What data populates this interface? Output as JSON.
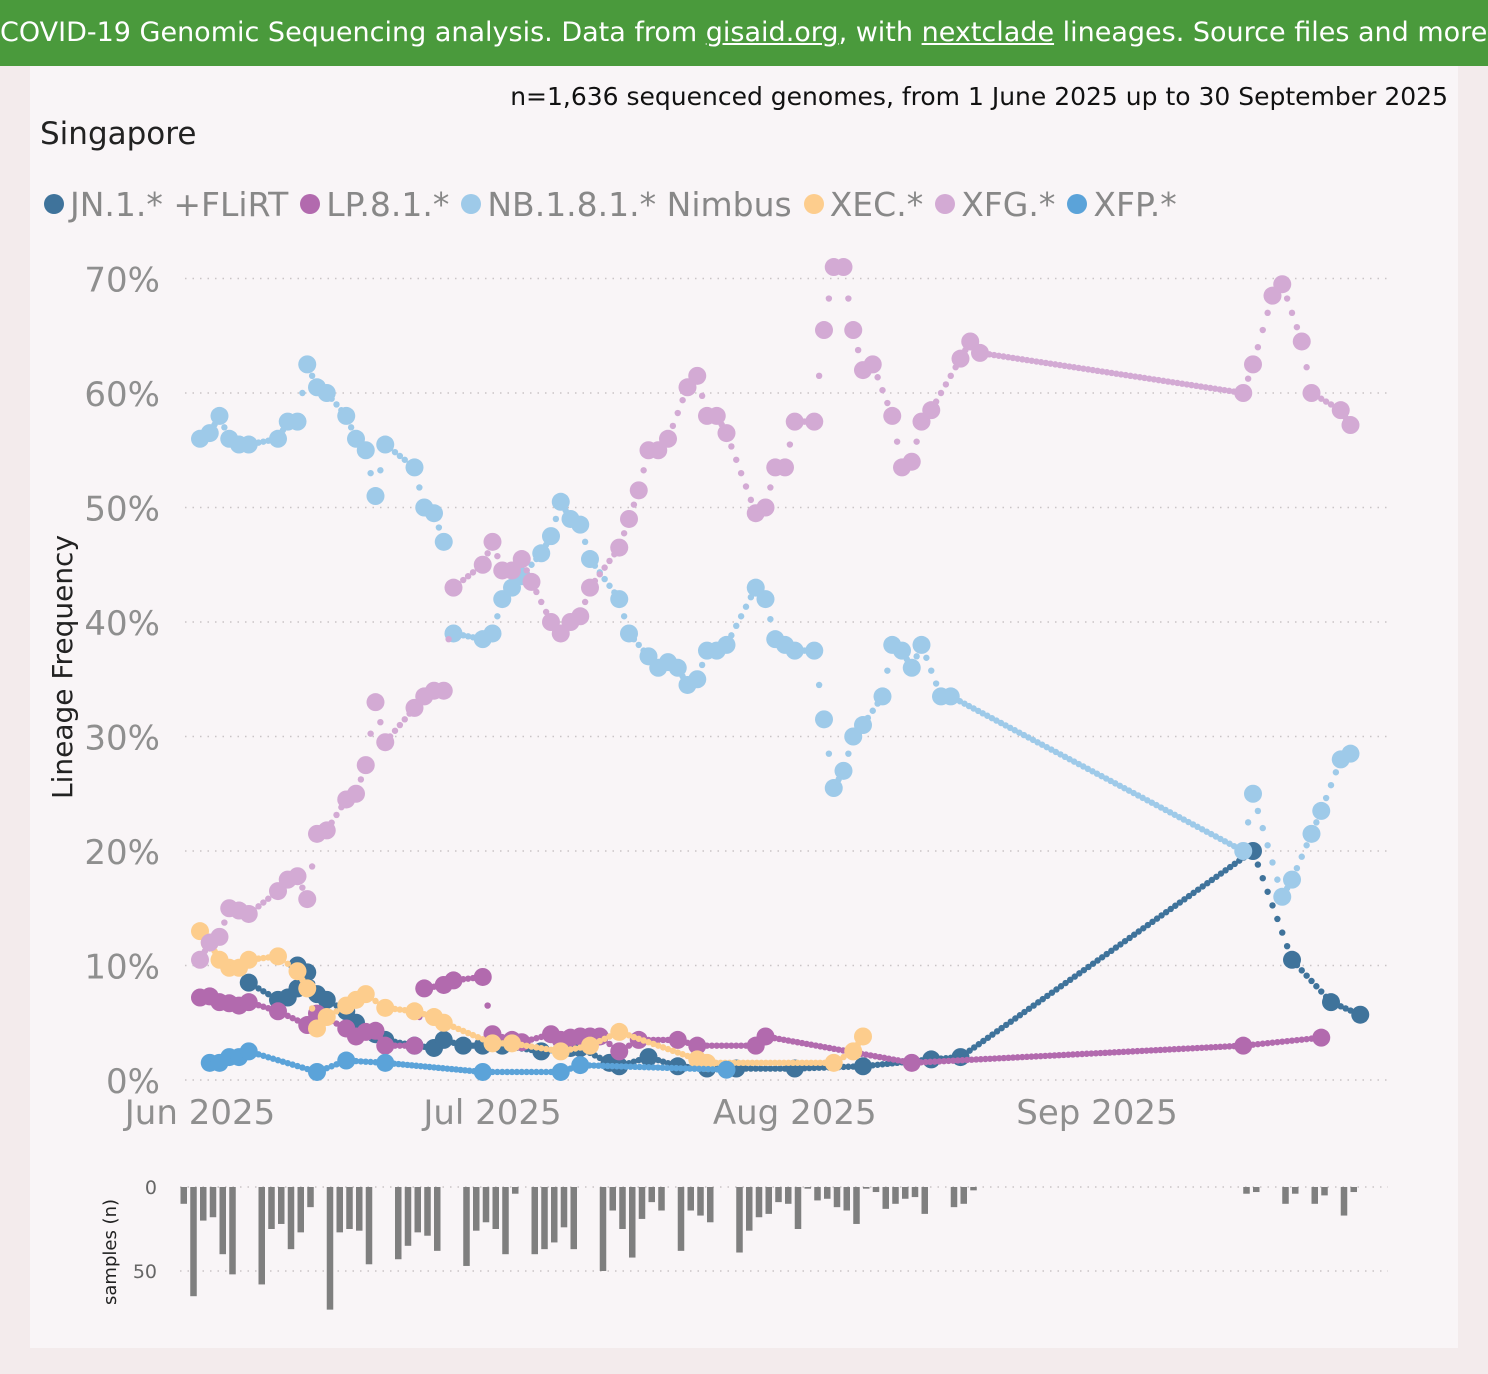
{
  "banner": {
    "prefix": "COVID-19 Genomic Sequencing analysis. Data from ",
    "link1": "gisaid.org",
    "mid": ", with ",
    "link2": "nextclade",
    "suffix": " lineages. Source files and more info"
  },
  "chart_data": {
    "type": "scatter",
    "title": "Singapore",
    "subtitle": "n=1,636 sequenced genomes, from 1 June 2025 up to 30 September 2025",
    "ylabel": "Lineage Frequency",
    "ylim": [
      0,
      70
    ],
    "yticks": [
      "0%",
      "10%",
      "20%",
      "30%",
      "40%",
      "50%",
      "60%",
      "70%"
    ],
    "xticks": [
      {
        "label": "Jun 2025",
        "day": 0
      },
      {
        "label": "Jul 2025",
        "day": 30
      },
      {
        "label": "Aug 2025",
        "day": 61
      },
      {
        "label": "Sep 2025",
        "day": 92
      }
    ],
    "series": [
      {
        "name": "JN.1.* +FLiRT",
        "color": "#3f739b",
        "points": [
          [
            5,
            8.5
          ],
          [
            8,
            7
          ],
          [
            9,
            7.2
          ],
          [
            10,
            8
          ],
          [
            10,
            10
          ],
          [
            11,
            9.4
          ],
          [
            12,
            7.5
          ],
          [
            13,
            7
          ],
          [
            15,
            6
          ],
          [
            16,
            5
          ],
          [
            18,
            4
          ],
          [
            19,
            3.5
          ],
          [
            22,
            3
          ],
          [
            24,
            2.8
          ],
          [
            25,
            3.5
          ],
          [
            27,
            3
          ],
          [
            29,
            3
          ],
          [
            31,
            3
          ],
          [
            35,
            2.5
          ],
          [
            38,
            2.8
          ],
          [
            39,
            2.8
          ],
          [
            42,
            1.5
          ],
          [
            43,
            1.2
          ],
          [
            46,
            2
          ],
          [
            49,
            1.2
          ],
          [
            52,
            1
          ],
          [
            55,
            1
          ],
          [
            61,
            1
          ],
          [
            68,
            1.2
          ],
          [
            75,
            1.8
          ],
          [
            78,
            2
          ],
          [
            108,
            20
          ],
          [
            112,
            10.5
          ],
          [
            116,
            6.8
          ],
          [
            119,
            5.7
          ]
        ]
      },
      {
        "name": "LP.8.1.*",
        "color": "#b26aae",
        "points": [
          [
            0,
            7.2
          ],
          [
            1,
            7.3
          ],
          [
            2,
            6.8
          ],
          [
            3,
            6.7
          ],
          [
            4,
            6.5
          ],
          [
            5,
            6.8
          ],
          [
            8,
            6
          ],
          [
            11,
            4.8
          ],
          [
            12,
            5.8
          ],
          [
            15,
            4.5
          ],
          [
            16,
            3.8
          ],
          [
            17,
            4.2
          ],
          [
            18,
            4.3
          ],
          [
            19,
            3
          ],
          [
            22,
            3
          ],
          [
            23,
            8
          ],
          [
            25,
            8.3
          ],
          [
            26,
            8.7
          ],
          [
            29,
            9
          ],
          [
            30,
            4
          ],
          [
            32,
            3.5
          ],
          [
            33,
            3.3
          ],
          [
            36,
            4
          ],
          [
            37,
            3.5
          ],
          [
            38,
            3.7
          ],
          [
            39,
            3.8
          ],
          [
            40,
            3.8
          ],
          [
            41,
            3.8
          ],
          [
            43,
            2.5
          ],
          [
            45,
            3.5
          ],
          [
            49,
            3.5
          ],
          [
            51,
            3
          ],
          [
            57,
            3
          ],
          [
            58,
            3.8
          ],
          [
            73,
            1.5
          ],
          [
            107,
            3
          ],
          [
            115,
            3.7
          ]
        ]
      },
      {
        "name": "NB.1.8.1.* Nimbus",
        "color": "#9ecae9",
        "points": [
          [
            0,
            56
          ],
          [
            1,
            56.5
          ],
          [
            2,
            58
          ],
          [
            3,
            56
          ],
          [
            4,
            55.5
          ],
          [
            5,
            55.5
          ],
          [
            8,
            56
          ],
          [
            9,
            57.5
          ],
          [
            10,
            57.5
          ],
          [
            11,
            62.5
          ],
          [
            12,
            60.5
          ],
          [
            13,
            60
          ],
          [
            15,
            58
          ],
          [
            16,
            56
          ],
          [
            17,
            55
          ],
          [
            18,
            51
          ],
          [
            19,
            55.5
          ],
          [
            22,
            53.5
          ],
          [
            23,
            50
          ],
          [
            24,
            49.5
          ],
          [
            25,
            47
          ],
          [
            26,
            39
          ],
          [
            29,
            38.5
          ],
          [
            30,
            39
          ],
          [
            31,
            42
          ],
          [
            32,
            43
          ],
          [
            33,
            44
          ],
          [
            35,
            46
          ],
          [
            36,
            47.5
          ],
          [
            37,
            50.5
          ],
          [
            38,
            49
          ],
          [
            39,
            48.5
          ],
          [
            40,
            45.5
          ],
          [
            43,
            42
          ],
          [
            44,
            39
          ],
          [
            46,
            37
          ],
          [
            47,
            36
          ],
          [
            48,
            36.5
          ],
          [
            49,
            36
          ],
          [
            50,
            34.5
          ],
          [
            51,
            35
          ],
          [
            52,
            37.5
          ],
          [
            53,
            37.5
          ],
          [
            54,
            38
          ],
          [
            57,
            43
          ],
          [
            58,
            42
          ],
          [
            59,
            38.5
          ],
          [
            60,
            38
          ],
          [
            61,
            37.5
          ],
          [
            63,
            37.5
          ],
          [
            64,
            31.5
          ],
          [
            65,
            25.5
          ],
          [
            66,
            27
          ],
          [
            67,
            30
          ],
          [
            68,
            31
          ],
          [
            70,
            33.5
          ],
          [
            71,
            38
          ],
          [
            72,
            37.5
          ],
          [
            73,
            36
          ],
          [
            74,
            38
          ],
          [
            76,
            33.5
          ],
          [
            77,
            33.5
          ],
          [
            107,
            20
          ],
          [
            108,
            25
          ],
          [
            111,
            16
          ],
          [
            112,
            17.5
          ],
          [
            114,
            21.5
          ],
          [
            115,
            23.5
          ],
          [
            117,
            28
          ],
          [
            118,
            28.5
          ]
        ]
      },
      {
        "name": "XEC.*",
        "color": "#fdcd8d",
        "points": [
          [
            0,
            13
          ],
          [
            1,
            12
          ],
          [
            2,
            10.5
          ],
          [
            3,
            9.8
          ],
          [
            4,
            9.8
          ],
          [
            5,
            10.5
          ],
          [
            8,
            10.8
          ],
          [
            10,
            9.5
          ],
          [
            11,
            8
          ],
          [
            12,
            4.5
          ],
          [
            13,
            5.5
          ],
          [
            15,
            6.5
          ],
          [
            16,
            7
          ],
          [
            17,
            7.5
          ],
          [
            19,
            6.3
          ],
          [
            22,
            6
          ],
          [
            24,
            5.5
          ],
          [
            25,
            5
          ],
          [
            30,
            3.2
          ],
          [
            32,
            3.2
          ],
          [
            37,
            2.5
          ],
          [
            40,
            3
          ],
          [
            43,
            4.2
          ],
          [
            51,
            1.8
          ],
          [
            52,
            1.5
          ],
          [
            65,
            1.5
          ],
          [
            67,
            2.5
          ],
          [
            68,
            3.8
          ]
        ]
      },
      {
        "name": "XFG.*",
        "color": "#d3aad4",
        "points": [
          [
            0,
            10.5
          ],
          [
            1,
            12
          ],
          [
            2,
            12.5
          ],
          [
            3,
            15
          ],
          [
            4,
            14.8
          ],
          [
            5,
            14.5
          ],
          [
            8,
            16.5
          ],
          [
            9,
            17.5
          ],
          [
            10,
            17.8
          ],
          [
            11,
            15.8
          ],
          [
            12,
            21.5
          ],
          [
            13,
            21.8
          ],
          [
            15,
            24.5
          ],
          [
            16,
            25
          ],
          [
            17,
            27.5
          ],
          [
            18,
            33
          ],
          [
            19,
            29.5
          ],
          [
            22,
            32.5
          ],
          [
            23,
            33.5
          ],
          [
            24,
            34
          ],
          [
            25,
            34
          ],
          [
            26,
            43
          ],
          [
            29,
            45
          ],
          [
            30,
            47
          ],
          [
            31,
            44.5
          ],
          [
            32,
            44.5
          ],
          [
            33,
            45.5
          ],
          [
            34,
            43.5
          ],
          [
            36,
            40
          ],
          [
            37,
            39
          ],
          [
            38,
            40
          ],
          [
            39,
            40.5
          ],
          [
            40,
            43
          ],
          [
            43,
            46.5
          ],
          [
            44,
            49
          ],
          [
            45,
            51.5
          ],
          [
            46,
            55
          ],
          [
            47,
            55
          ],
          [
            48,
            56
          ],
          [
            50,
            60.5
          ],
          [
            51,
            61.5
          ],
          [
            52,
            58
          ],
          [
            53,
            58
          ],
          [
            54,
            56.5
          ],
          [
            57,
            49.5
          ],
          [
            58,
            50
          ],
          [
            59,
            53.5
          ],
          [
            60,
            53.5
          ],
          [
            61,
            57.5
          ],
          [
            63,
            57.5
          ],
          [
            64,
            65.5
          ],
          [
            65,
            71
          ],
          [
            66,
            71
          ],
          [
            67,
            65.5
          ],
          [
            68,
            62
          ],
          [
            69,
            62.5
          ],
          [
            71,
            58
          ],
          [
            72,
            53.5
          ],
          [
            73,
            54
          ],
          [
            74,
            57.5
          ],
          [
            75,
            58.5
          ],
          [
            78,
            63
          ],
          [
            79,
            64.5
          ],
          [
            80,
            63.5
          ],
          [
            107,
            60
          ],
          [
            108,
            62.5
          ],
          [
            110,
            68.5
          ],
          [
            111,
            69.5
          ],
          [
            113,
            64.5
          ],
          [
            114,
            60
          ],
          [
            117,
            58.5
          ],
          [
            118,
            57.2
          ]
        ]
      },
      {
        "name": "XFP.*",
        "color": "#5ba3d9",
        "points": [
          [
            1,
            1.5
          ],
          [
            2,
            1.5
          ],
          [
            3,
            2
          ],
          [
            4,
            2
          ],
          [
            5,
            2.5
          ],
          [
            12,
            0.7
          ],
          [
            15,
            1.7
          ],
          [
            19,
            1.5
          ],
          [
            29,
            0.7
          ],
          [
            37,
            0.7
          ],
          [
            39,
            1.3
          ],
          [
            54,
            0.9
          ]
        ]
      }
    ],
    "samples": {
      "ylabel": "samples (n)",
      "ylim": [
        0,
        50
      ],
      "yticks": [
        "0",
        "50"
      ],
      "values": [
        [
          0,
          10
        ],
        [
          1,
          65
        ],
        [
          2,
          20
        ],
        [
          3,
          18
        ],
        [
          4,
          40
        ],
        [
          5,
          52
        ],
        [
          8,
          58
        ],
        [
          9,
          25
        ],
        [
          10,
          22
        ],
        [
          11,
          37
        ],
        [
          12,
          27
        ],
        [
          13,
          12
        ],
        [
          15,
          73
        ],
        [
          16,
          27
        ],
        [
          17,
          25
        ],
        [
          18,
          26
        ],
        [
          19,
          46
        ],
        [
          22,
          43
        ],
        [
          23,
          35
        ],
        [
          24,
          27
        ],
        [
          25,
          29
        ],
        [
          26,
          38
        ],
        [
          29,
          47
        ],
        [
          30,
          26
        ],
        [
          31,
          21
        ],
        [
          32,
          25
        ],
        [
          33,
          40
        ],
        [
          34,
          4
        ],
        [
          36,
          40
        ],
        [
          37,
          37
        ],
        [
          38,
          33
        ],
        [
          39,
          24
        ],
        [
          40,
          37
        ],
        [
          43,
          50
        ],
        [
          44,
          14
        ],
        [
          45,
          25
        ],
        [
          46,
          42
        ],
        [
          47,
          19
        ],
        [
          48,
          9
        ],
        [
          49,
          14
        ],
        [
          51,
          38
        ],
        [
          52,
          14
        ],
        [
          53,
          17
        ],
        [
          54,
          21
        ],
        [
          57,
          39
        ],
        [
          58,
          26
        ],
        [
          59,
          18
        ],
        [
          60,
          16
        ],
        [
          61,
          9
        ],
        [
          62,
          10
        ],
        [
          63,
          25
        ],
        [
          64,
          1
        ],
        [
          65,
          8
        ],
        [
          66,
          7
        ],
        [
          67,
          12
        ],
        [
          68,
          14
        ],
        [
          69,
          22
        ],
        [
          70,
          1
        ],
        [
          71,
          3
        ],
        [
          72,
          13
        ],
        [
          73,
          10
        ],
        [
          74,
          7
        ],
        [
          75,
          6
        ],
        [
          76,
          16
        ],
        [
          79,
          12
        ],
        [
          80,
          10
        ],
        [
          81,
          2
        ],
        [
          109,
          4
        ],
        [
          110,
          3
        ],
        [
          113,
          10
        ],
        [
          114,
          4
        ],
        [
          116,
          10
        ],
        [
          117,
          5
        ],
        [
          119,
          17
        ],
        [
          120,
          3
        ]
      ]
    }
  }
}
